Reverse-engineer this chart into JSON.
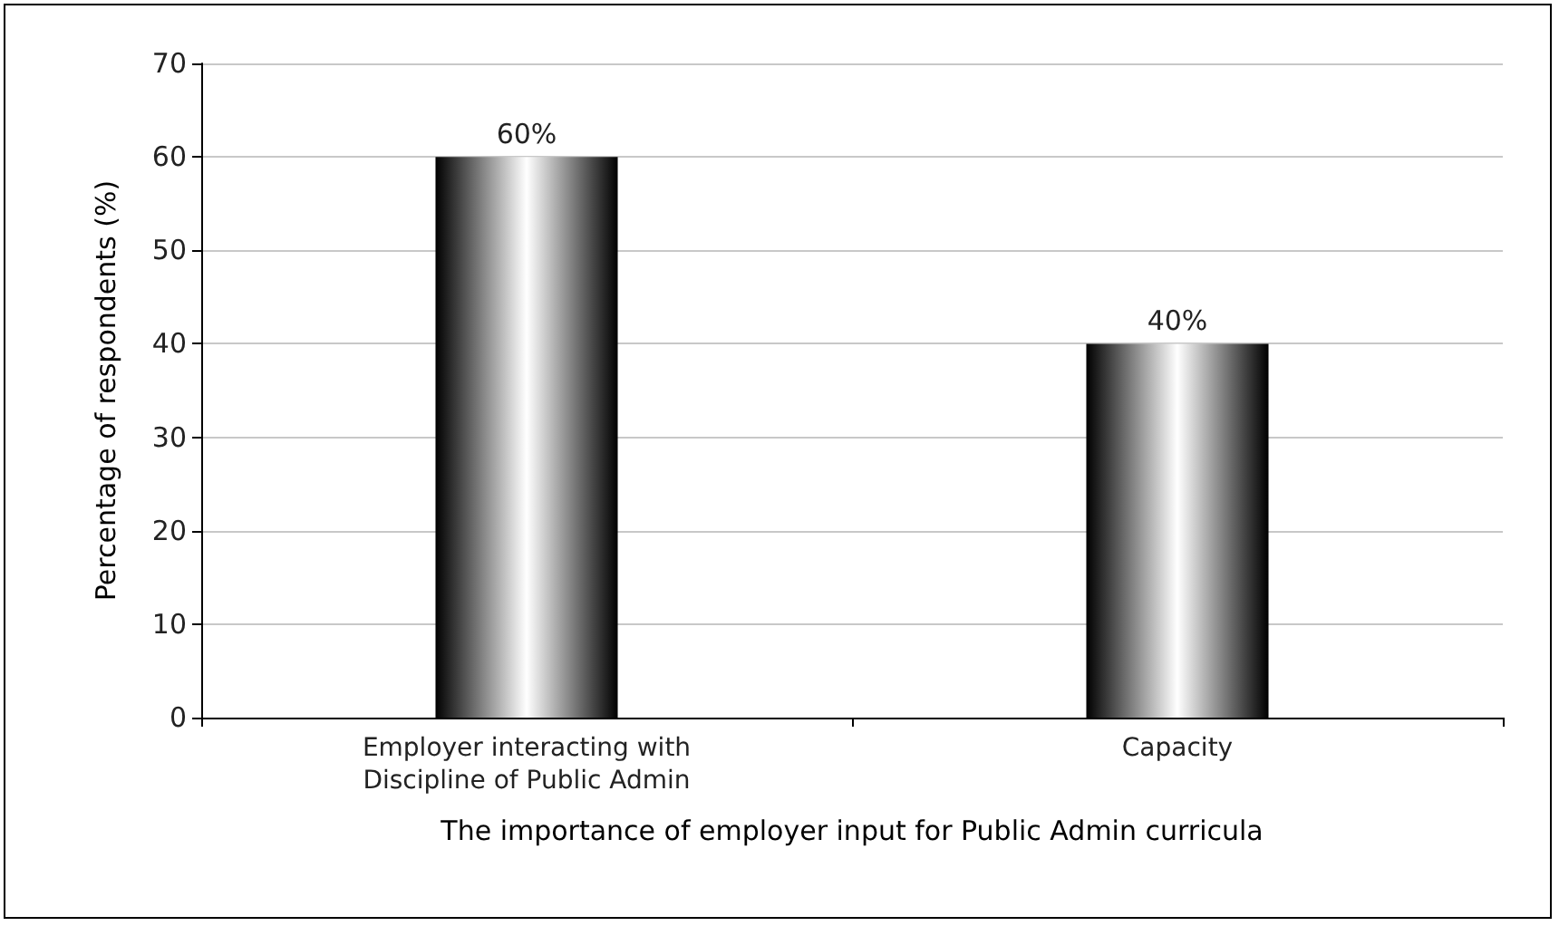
{
  "chart_data": {
    "type": "bar",
    "xlabel": "The importance of employer input for Public Admin curricula",
    "ylabel": "Percentage of respondents (%)",
    "categories": [
      "Employer interacting with\nDiscipline of Public Admin",
      "Capacity"
    ],
    "values": [
      60,
      40
    ],
    "value_labels": [
      "60%",
      "40%"
    ],
    "color": "#000000",
    "ylim": [
      0,
      70
    ],
    "yticks": [
      0,
      10,
      20,
      30,
      40,
      50,
      60,
      70
    ],
    "grid": "y"
  }
}
